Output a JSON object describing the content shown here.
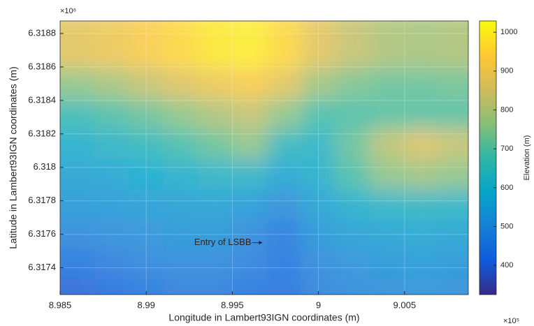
{
  "chart_data": {
    "type": "heatmap",
    "x_label": "Longitude in Lambert93IGN coordinates (m)",
    "y_label": "Latitude in Lambert93IGN coordinates (m)",
    "x_exponent": "×10⁵",
    "y_exponent": "×10⁶",
    "colorbar_label": "Elevation (m)",
    "x": [
      8.986,
      8.988,
      8.99,
      8.992,
      8.994,
      8.996,
      8.998,
      9.0,
      9.002,
      9.004,
      9.006,
      9.008
    ],
    "y": [
      6.31868,
      6.3185,
      6.31832,
      6.31814,
      6.31796,
      6.31778,
      6.3176,
      6.31742,
      6.31724
    ],
    "z": [
      [
        880,
        900,
        930,
        960,
        990,
        1000,
        960,
        880,
        830,
        800,
        790,
        800
      ],
      [
        760,
        790,
        830,
        870,
        900,
        930,
        880,
        780,
        740,
        720,
        720,
        730
      ],
      [
        660,
        690,
        720,
        760,
        800,
        830,
        760,
        680,
        690,
        700,
        700,
        700
      ],
      [
        600,
        620,
        640,
        680,
        720,
        760,
        640,
        620,
        720,
        820,
        860,
        830
      ],
      [
        560,
        570,
        590,
        600,
        620,
        620,
        570,
        600,
        690,
        760,
        780,
        760
      ],
      [
        530,
        535,
        545,
        550,
        560,
        540,
        500,
        560,
        600,
        620,
        630,
        620
      ],
      [
        490,
        500,
        510,
        520,
        520,
        490,
        450,
        520,
        550,
        560,
        570,
        560
      ],
      [
        440,
        460,
        480,
        490,
        490,
        470,
        440,
        490,
        510,
        520,
        530,
        520
      ],
      [
        400,
        420,
        440,
        460,
        460,
        440,
        430,
        470,
        490,
        500,
        510,
        500
      ]
    ],
    "xlim": [
      8.985,
      9.0087
    ],
    "ylim": [
      6.31724,
      6.318875
    ],
    "xticks": [
      8.985,
      8.99,
      8.995,
      9,
      9.005
    ],
    "yticks": [
      6.3174,
      6.3176,
      6.3178,
      6.318,
      6.3182,
      6.3184,
      6.3186,
      6.3188
    ],
    "clim": [
      325,
      1029
    ],
    "cticks": [
      400,
      500,
      600,
      700,
      800,
      900,
      1000
    ],
    "colormap": [
      "#352a87",
      "#0f5cdd",
      "#1481d6",
      "#06a4ca",
      "#2eb7a4",
      "#87bf77",
      "#d1bb59",
      "#fec832",
      "#f9fb0e"
    ],
    "grid": true,
    "annotation": {
      "text": "Entry of LSBB",
      "x": 8.99675,
      "y": 6.31755
    }
  }
}
